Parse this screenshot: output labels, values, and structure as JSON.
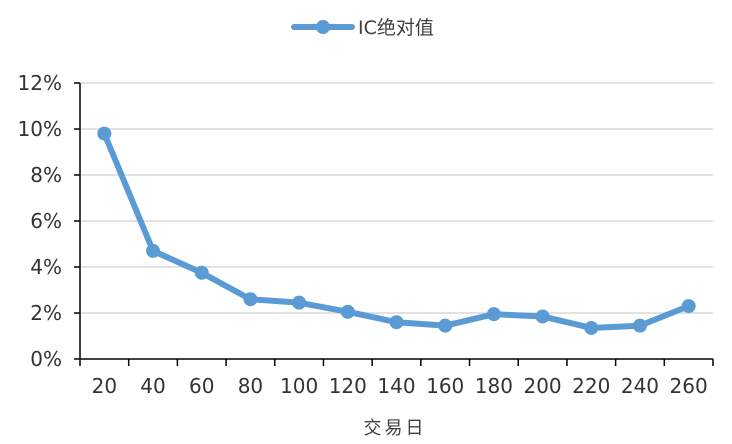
{
  "chart_data": {
    "type": "line",
    "x": [
      20,
      40,
      60,
      80,
      100,
      120,
      140,
      160,
      180,
      200,
      220,
      240,
      260
    ],
    "series": [
      {
        "name": "IC绝对值",
        "values": [
          9.8,
          4.7,
          3.75,
          2.6,
          2.45,
          2.05,
          1.6,
          1.45,
          1.95,
          1.85,
          1.35,
          1.45,
          2.3
        ],
        "color": "#5B9BD5"
      }
    ],
    "x_tick_labels": [
      "20",
      "40",
      "60",
      "80",
      "100",
      "120",
      "140",
      "160",
      "180",
      "200",
      "220",
      "240",
      "260"
    ],
    "y_tick_labels": [
      "0%",
      "2%",
      "4%",
      "6%",
      "8%",
      "10%",
      "12%"
    ],
    "y_ticks": [
      0,
      2,
      4,
      6,
      8,
      10,
      12
    ],
    "ylim": [
      0,
      12
    ],
    "xlabel": "交易日",
    "ylabel": "",
    "title": "",
    "grid": true,
    "legend_position": "top-center",
    "colors": {
      "line": "#5B9BD5",
      "grid": "#D9D9D9",
      "axis": "#000000"
    }
  }
}
